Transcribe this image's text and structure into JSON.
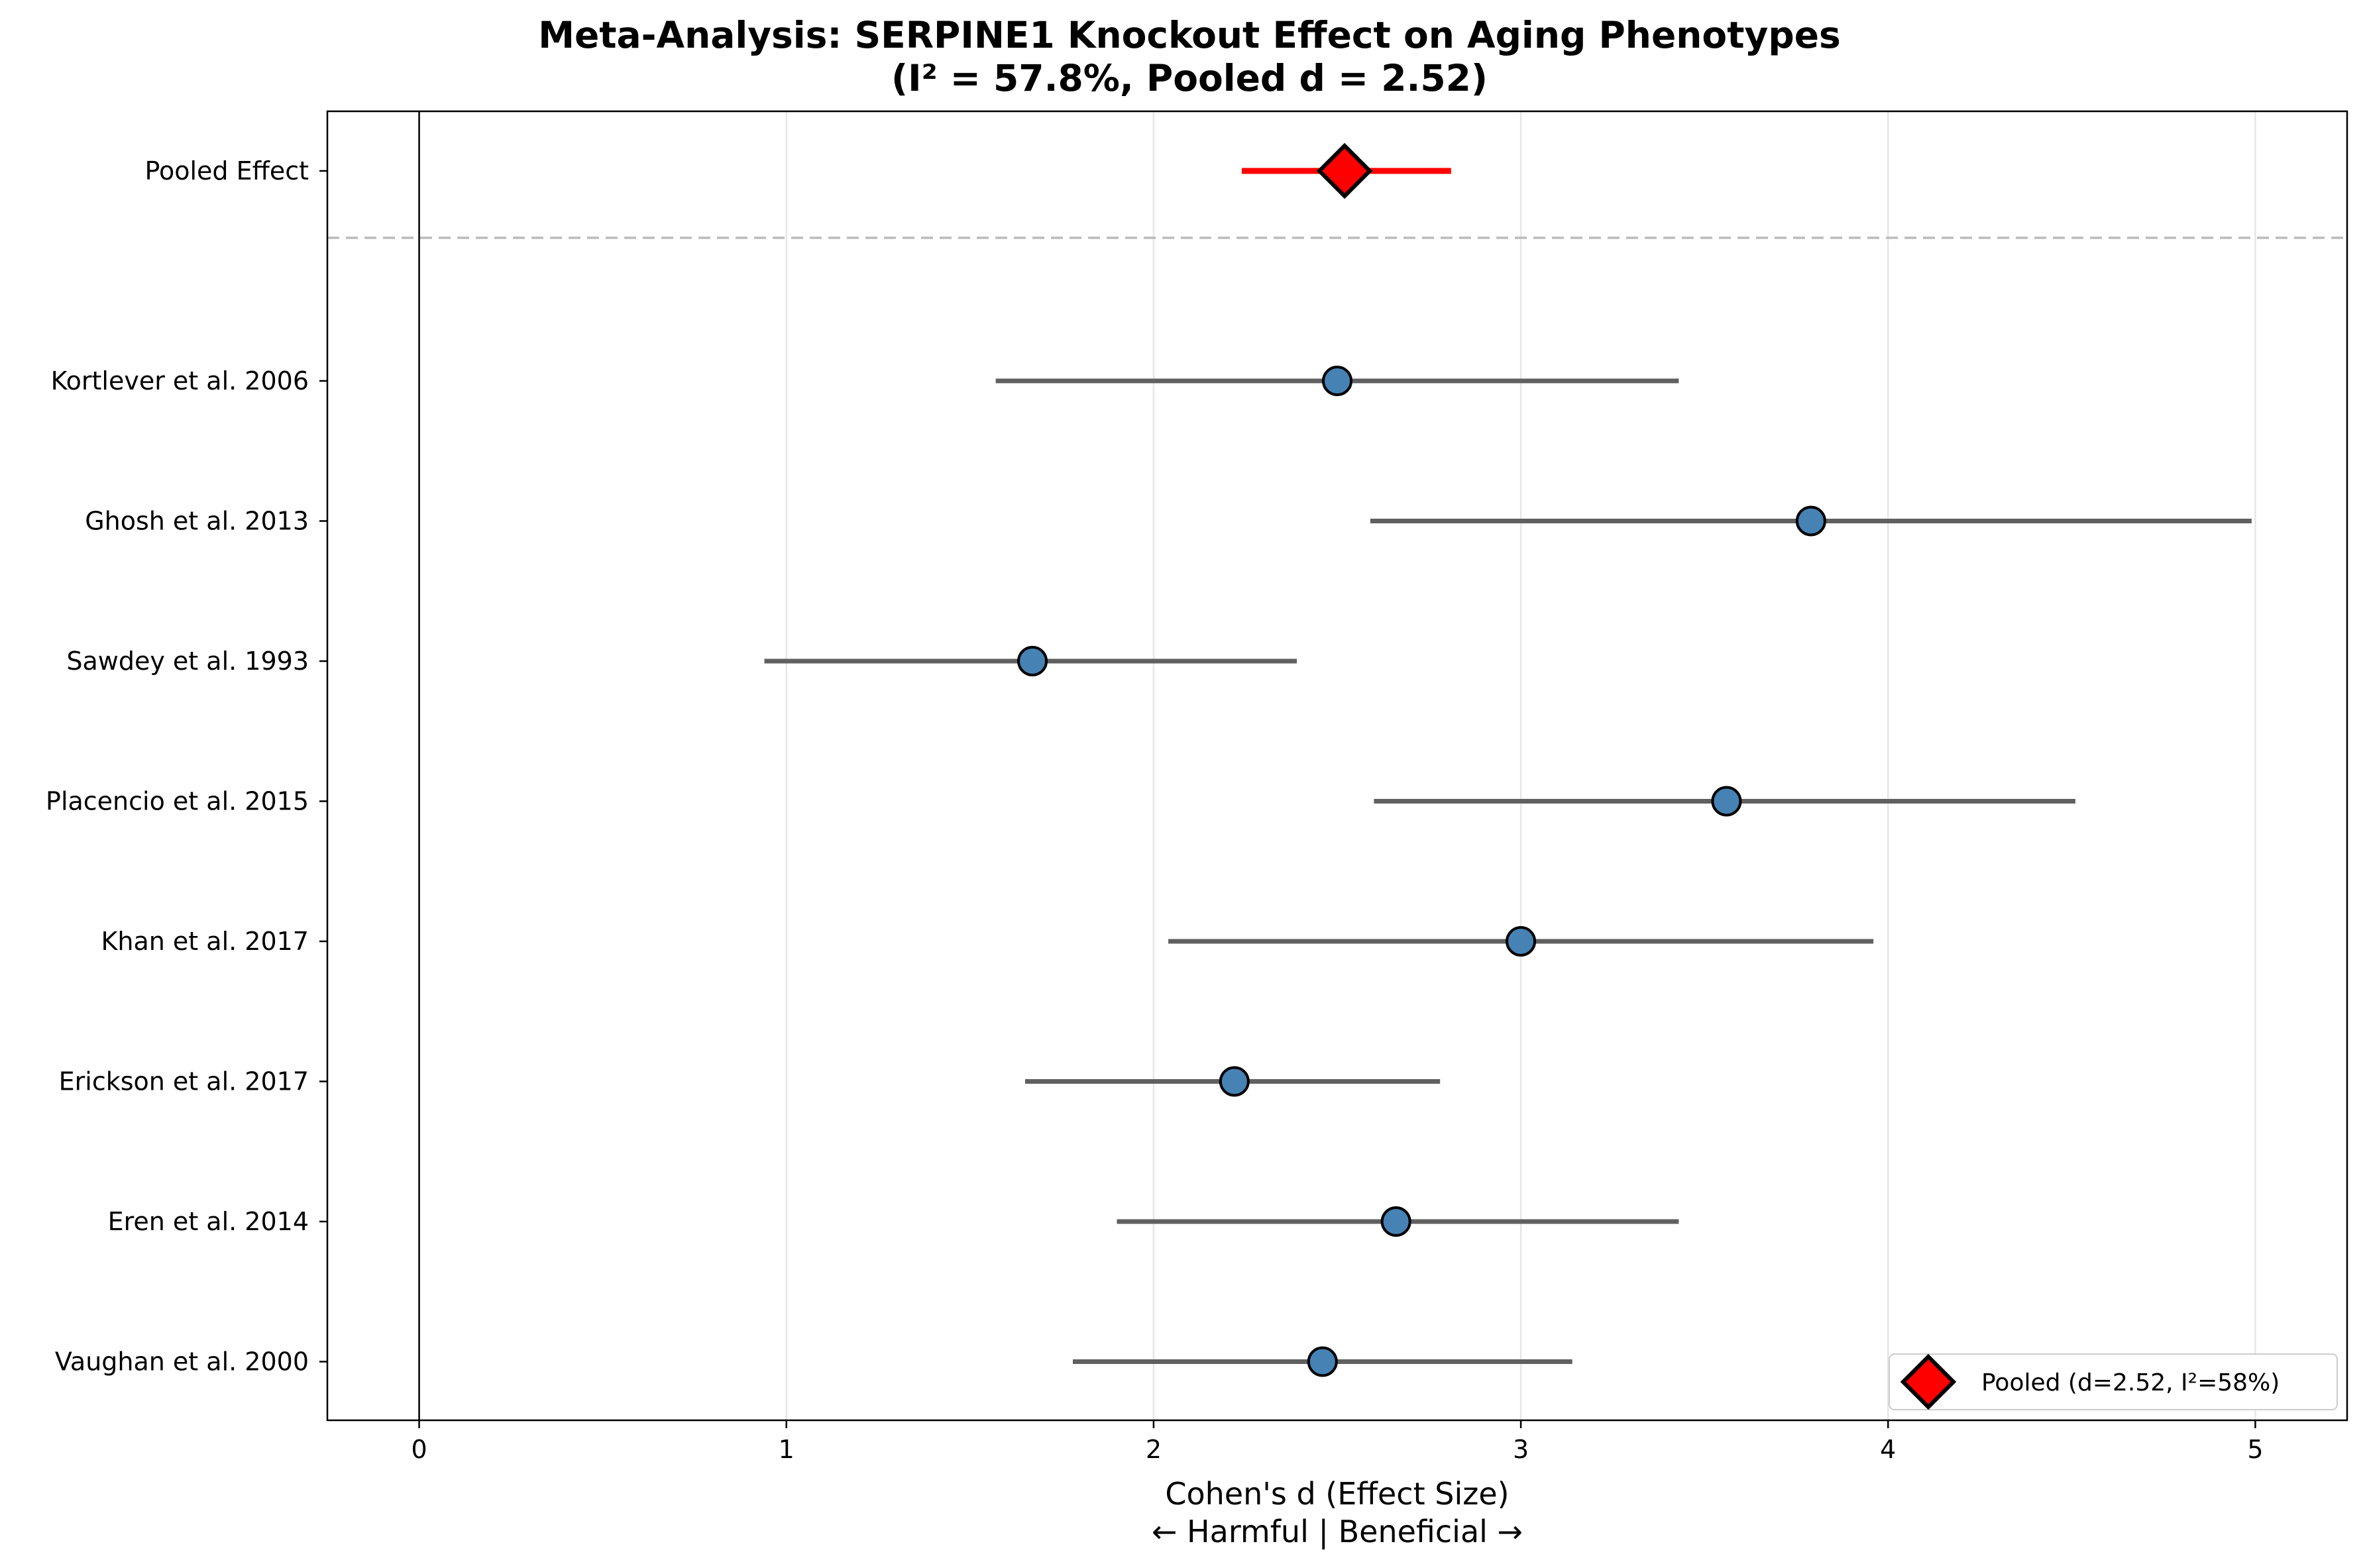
{
  "chart_data": {
    "type": "forest",
    "title_line1": "Meta-Analysis: SERPINE1 Knockout Effect on Aging Phenotypes",
    "title_line2": "(I² = 57.8%, Pooled d = 2.52)",
    "xlabel_line1": "Cohen's d (Effect Size)",
    "xlabel_line2": "← Harmful | Beneficial →",
    "xlim": [
      -0.25,
      5.25
    ],
    "xticks": [
      "0",
      "1",
      "2",
      "3",
      "4",
      "5"
    ],
    "grid": true,
    "legend_position": "lower-right",
    "pooled": {
      "label": "Pooled Effect",
      "d": 2.52,
      "ci_low": 2.24,
      "ci_high": 2.81,
      "legend_label": "Pooled (d=2.52, I²=58%)",
      "color": "#ff0000"
    },
    "studies": [
      {
        "label": "Kortlever et al. 2006",
        "d": 2.5,
        "ci_low": 1.57,
        "ci_high": 3.43
      },
      {
        "label": "Ghosh et al. 2013",
        "d": 3.79,
        "ci_low": 2.59,
        "ci_high": 4.99
      },
      {
        "label": "Sawdey et al. 1993",
        "d": 1.67,
        "ci_low": 0.94,
        "ci_high": 2.39
      },
      {
        "label": "Placencio et al. 2015",
        "d": 3.56,
        "ci_low": 2.6,
        "ci_high": 4.51
      },
      {
        "label": "Khan et al. 2017",
        "d": 3.0,
        "ci_low": 2.04,
        "ci_high": 3.96
      },
      {
        "label": "Erickson et al. 2017",
        "d": 2.22,
        "ci_low": 1.65,
        "ci_high": 2.78
      },
      {
        "label": "Eren et al. 2014",
        "d": 2.66,
        "ci_low": 1.9,
        "ci_high": 3.43
      },
      {
        "label": "Vaughan et al. 2000",
        "d": 2.46,
        "ci_low": 1.78,
        "ci_high": 3.14
      }
    ],
    "study_marker_color": "#4682b4",
    "ci_line_color": "#606060"
  }
}
